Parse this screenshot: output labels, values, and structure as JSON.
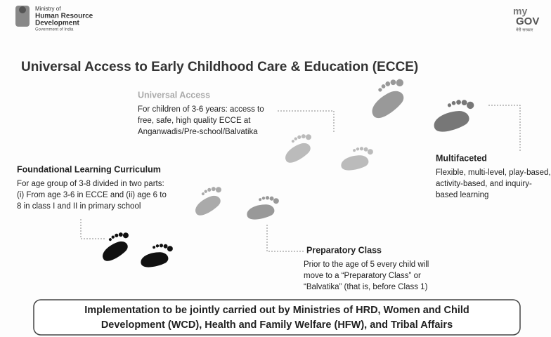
{
  "header": {
    "ministry": [
      "Ministry of",
      "Human Resource",
      "Development",
      "Government of India"
    ],
    "logo": {
      "top": "my",
      "bottom": "GOV",
      "tagline": "मेरी सरकार"
    }
  },
  "title": "Universal Access to Early Childhood Care & Education (ECCE)",
  "sections": [
    {
      "title": "Universal Access",
      "lines": [
        "For children of 3-6 years: access to",
        "free, safe, high quality ECCE at",
        "Anganwadis/Pre-school/Balvatika"
      ]
    },
    {
      "title": "Foundational  Learning Curriculum",
      "lines": [
        "For age group of 3-8 divided in two parts:",
        "(i) From age 3-6 in ECCE and (ii) age 6 to",
        "8 in class I and II in primary school"
      ]
    },
    {
      "title": "Multifaceted",
      "lines": [
        "Flexible, multi-level, play-based,",
        "activity-based, and inquiry-",
        "based learning"
      ]
    },
    {
      "title": "Preparatory Class",
      "lines": [
        "Prior to the age of 5 every child will",
        "move to a “Preparatory Class” or",
        "“Balvatika” (that is, before Class 1)"
      ]
    }
  ],
  "footer": [
    "Implementation to be jointly carried out by Ministries of HRD, Women and Child",
    "Development (WCD), Health and Family Welfare (HFW), and Tribal Affairs"
  ]
}
